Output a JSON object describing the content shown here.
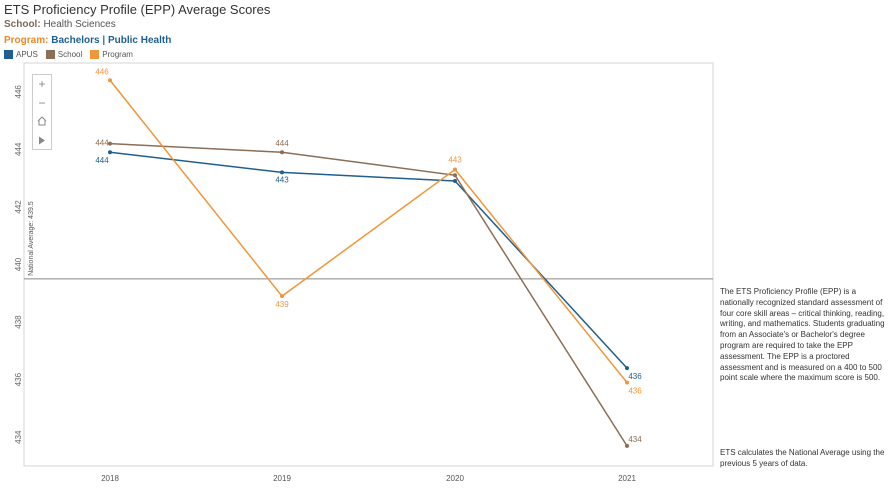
{
  "header": {
    "title": "ETS Proficiency Profile (EPP) Average Scores",
    "school_label": "School:",
    "school_value": "Health Sciences",
    "program_label": "Program:",
    "program_level": "Bachelors",
    "program_separator": "|",
    "program_name": "Public Health"
  },
  "legend": [
    {
      "label": "APUS",
      "color": "#1f5f8f"
    },
    {
      "label": "School",
      "color": "#8c6d55"
    },
    {
      "label": "Program",
      "color": "#f0963a"
    }
  ],
  "toolbar": {
    "zoom_in_icon": "plus-icon",
    "zoom_out_icon": "minus-icon",
    "home_icon": "home-icon",
    "expand_icon": "play-icon"
  },
  "description": "The ETS Proficiency Profile (EPP) is a nationally recognized standard assessment of four core skill areas – critical thinking, reading, writing, and mathematics.  Students graduating from an Associate's or Bachelor's degree program are required to take the EPP assessment.  The EPP is a proctored assessment and is measured on a 400 to 500 point scale where the maximum score is 500.",
  "note": "ETS calculates the National Average using the previous 5 years of data.",
  "chart_data": {
    "type": "line",
    "title": "ETS Proficiency Profile (EPP) Average Scores",
    "xlabel": "",
    "ylabel": "",
    "categories": [
      "2018",
      "2019",
      "2020",
      "2021"
    ],
    "ylim": [
      433,
      447
    ],
    "yticks": [
      434,
      436,
      438,
      440,
      442,
      444,
      446
    ],
    "grid": false,
    "legend_position": "top-left",
    "reference_line": {
      "label": "National Average: 439.5",
      "value": 439.5
    },
    "series": [
      {
        "name": "APUS",
        "color": "#1f5f8f",
        "values": [
          443.9,
          443.2,
          442.9,
          436.4
        ],
        "labels": [
          "444",
          "443",
          "",
          "436"
        ]
      },
      {
        "name": "School",
        "color": "#8c6d55",
        "values": [
          444.2,
          443.9,
          443.1,
          433.7
        ],
        "labels": [
          "444",
          "444",
          "",
          "434"
        ]
      },
      {
        "name": "Program",
        "color": "#f0963a",
        "values": [
          446.4,
          438.9,
          443.3,
          435.9
        ],
        "labels": [
          "446",
          "439",
          "443",
          "436"
        ]
      }
    ]
  }
}
